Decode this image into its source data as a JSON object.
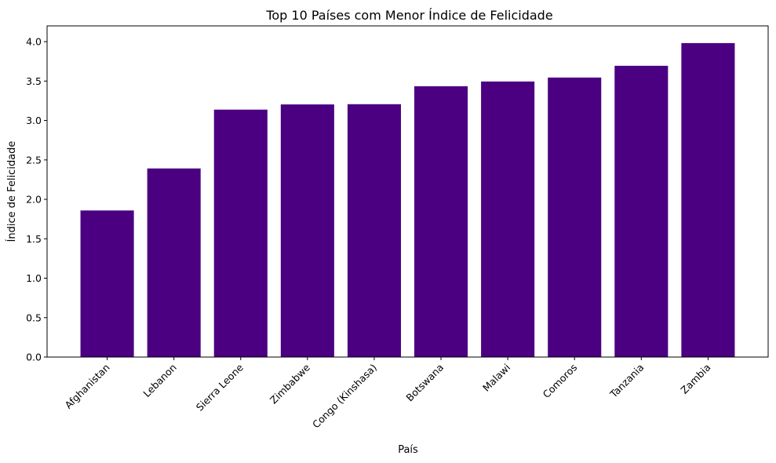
{
  "chart_data": {
    "type": "bar",
    "title": "Top 10 Países com Menor Índice de Felicidade",
    "xlabel": "País",
    "ylabel": "Índice de Felicidade",
    "categories": [
      "Afghanistan",
      "Lebanon",
      "Sierra Leone",
      "Zimbabwe",
      "Congo (Kinshasa)",
      "Botswana",
      "Malawi",
      "Comoros",
      "Tanzania",
      "Zambia"
    ],
    "values": [
      1.859,
      2.392,
      3.138,
      3.204,
      3.207,
      3.435,
      3.495,
      3.545,
      3.694,
      3.982
    ],
    "ylim": [
      0,
      4.2
    ],
    "yticks": [
      "0.0",
      "0.5",
      "1.0",
      "1.5",
      "2.0",
      "2.5",
      "3.0",
      "3.5",
      "4.0"
    ],
    "bar_color": "#4b0082",
    "grid": false
  }
}
